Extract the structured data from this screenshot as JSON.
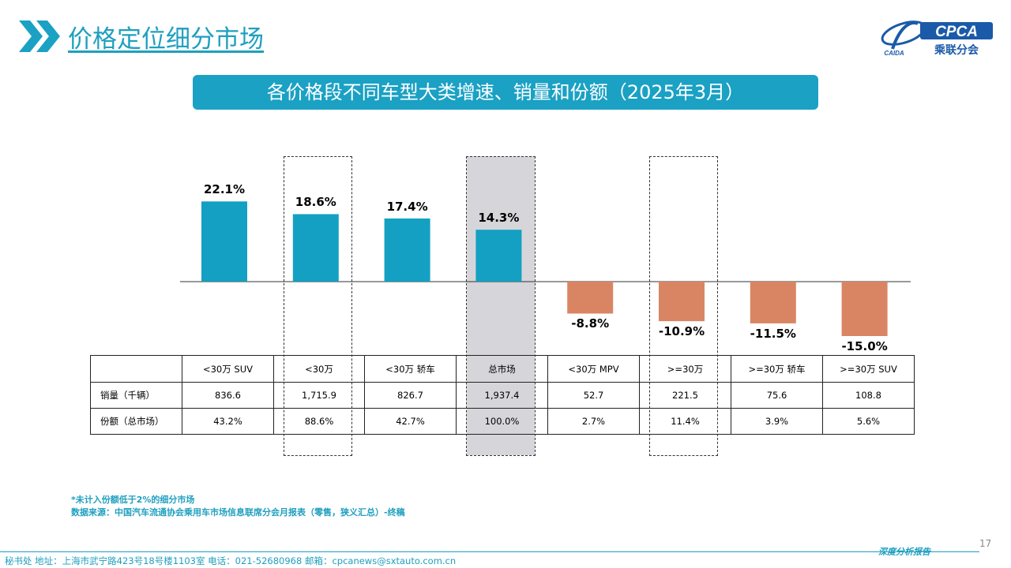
{
  "header": {
    "title": "价格定位细分市场",
    "logo_text": "CPCA",
    "logo_cn": "乘联分会",
    "logo_tag": "CAIDA"
  },
  "banner": {
    "title": "各价格段不同车型大类增速、销量和份额（2025年3月）"
  },
  "chart_data": {
    "type": "bar",
    "title": "各价格段不同车型大类增速、销量和份额（2025年3月）",
    "categories": [
      "<30万 SUV",
      "<30万",
      "<30万 轿车",
      "总市场",
      "<30万 MPV",
      ">=30万",
      ">=30万 轿车",
      ">=30万 SUV"
    ],
    "values": [
      22.1,
      18.6,
      17.4,
      14.3,
      -8.8,
      -10.9,
      -11.5,
      -15.0
    ],
    "value_labels": [
      "22.1%",
      "18.6%",
      "17.4%",
      "14.3%",
      "-8.8%",
      "-10.9%",
      "-11.5%",
      "-15.0%"
    ],
    "unit": "%",
    "colors": {
      "positive": "#14a0c2",
      "negative": "#d98563"
    },
    "grid": false,
    "legend": "none"
  },
  "table": {
    "headers": [
      "",
      "<30万 SUV",
      "<30万",
      "<30万 轿车",
      "总市场",
      "<30万 MPV",
      ">=30万",
      ">=30万 轿车",
      ">=30万 SUV"
    ],
    "rows": [
      {
        "label": "销量（千辆）",
        "cells": [
          "836.6",
          "1,715.9",
          "826.7",
          "1,937.4",
          "52.7",
          "221.5",
          "75.6",
          "108.8"
        ]
      },
      {
        "label": "份额（总市场）",
        "cells": [
          "43.2%",
          "88.6%",
          "42.7%",
          "100.0%",
          "2.7%",
          "11.4%",
          "3.9%",
          "5.6%"
        ]
      }
    ]
  },
  "notes": {
    "line1": "*未计入份额低于2%的细分市场",
    "line2": "数据来源：中国汽车流通协会乘用车市场信息联席分会月报表（零售，狭义汇总）-终稿"
  },
  "page": {
    "number": "17"
  },
  "footer": {
    "contact": "秘书处   地址：上海市武宁路423号18号楼1103室   电话：021-52680968   邮箱：cpcanews@sxtauto.com.cn",
    "tag": "深度分析报告"
  }
}
